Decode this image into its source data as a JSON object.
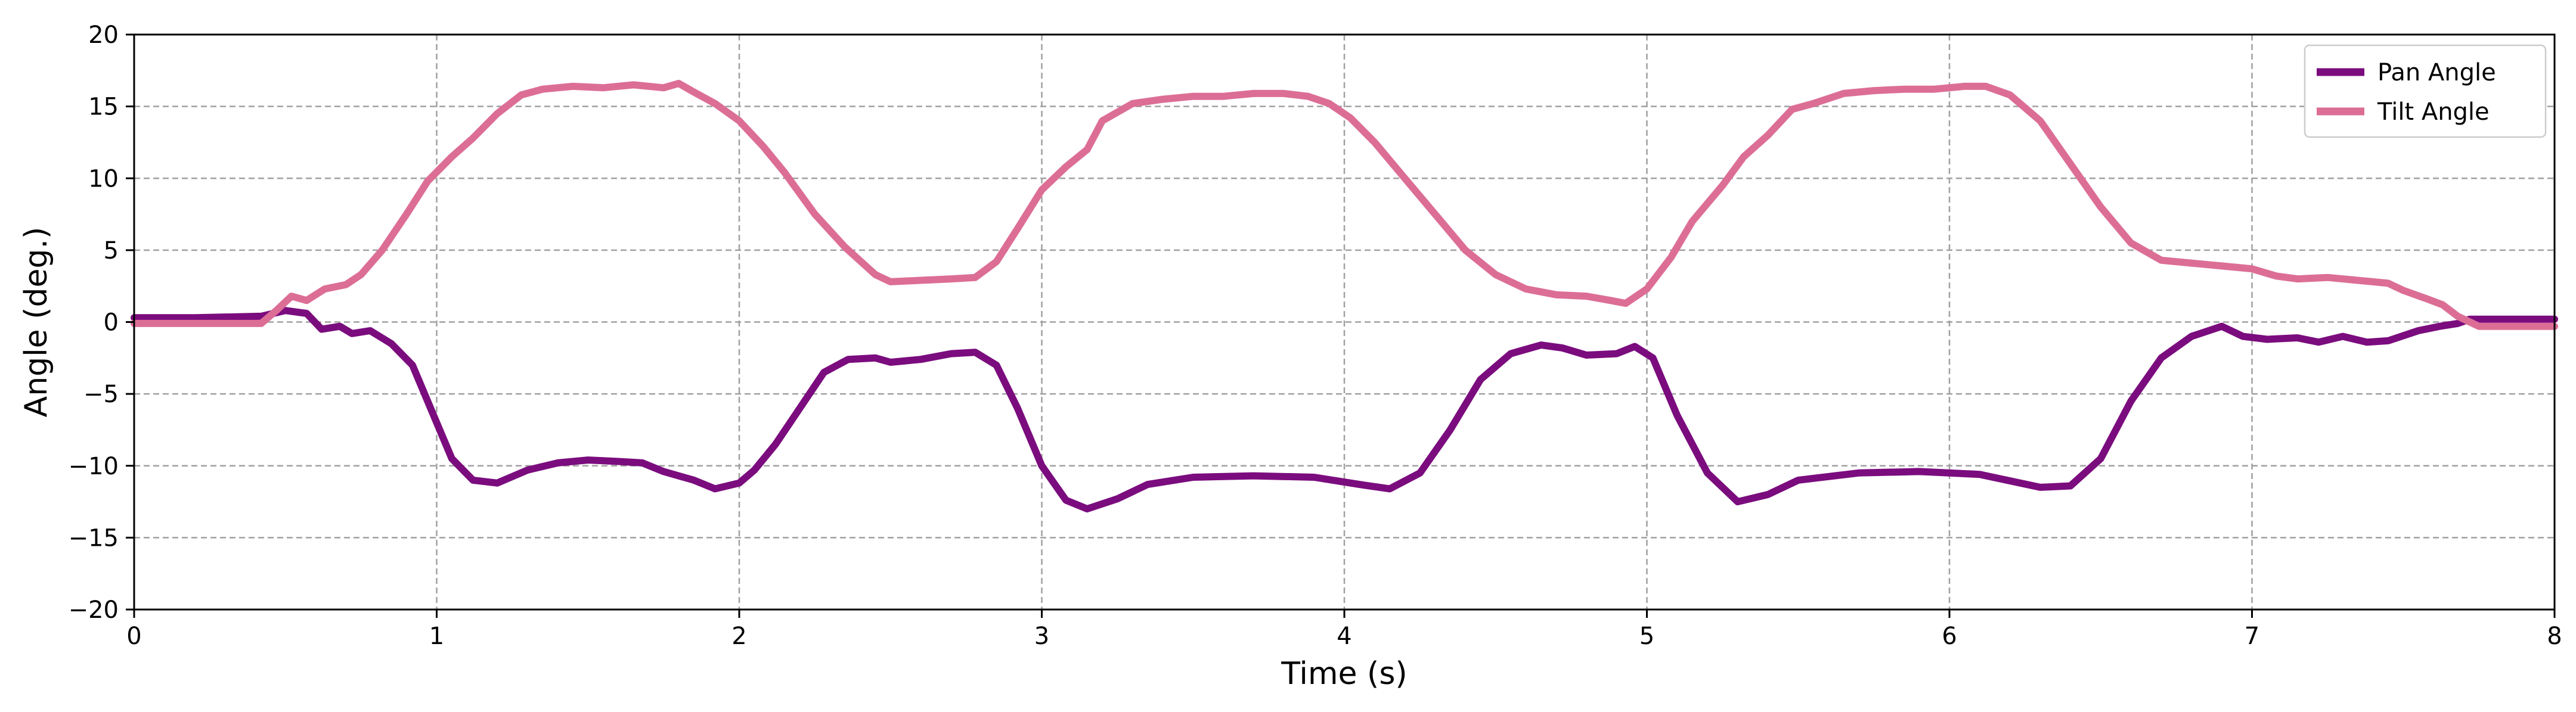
{
  "chart_data": {
    "type": "line",
    "title": "",
    "xlabel": "Time (s)",
    "ylabel": "Angle (deg.)",
    "xlim": [
      0,
      8
    ],
    "ylim": [
      -20,
      20
    ],
    "xticks": [
      0,
      1,
      2,
      3,
      4,
      5,
      6,
      7,
      8
    ],
    "xtick_labels": [
      "0",
      "1",
      "2",
      "3",
      "4",
      "5",
      "6",
      "7",
      "8"
    ],
    "yticks": [
      -20,
      -15,
      -10,
      -5,
      0,
      5,
      10,
      15,
      20
    ],
    "ytick_labels": [
      "−20",
      "−15",
      "−10",
      "−5",
      "0",
      "5",
      "10",
      "15",
      "20"
    ],
    "grid": true,
    "legend_position": "top-right",
    "series": [
      {
        "name": "Pan Angle",
        "color": "#7b0c7e",
        "points": [
          [
            0,
            0.3
          ],
          [
            0.2,
            0.3
          ],
          [
            0.42,
            0.4
          ],
          [
            0.5,
            0.8
          ],
          [
            0.57,
            0.6
          ],
          [
            0.62,
            -0.5
          ],
          [
            0.68,
            -0.3
          ],
          [
            0.72,
            -0.8
          ],
          [
            0.78,
            -0.6
          ],
          [
            0.85,
            -1.5
          ],
          [
            0.92,
            -3
          ],
          [
            1.0,
            -7
          ],
          [
            1.05,
            -9.5
          ],
          [
            1.12,
            -11
          ],
          [
            1.2,
            -11.2
          ],
          [
            1.3,
            -10.3
          ],
          [
            1.4,
            -9.8
          ],
          [
            1.5,
            -9.6
          ],
          [
            1.6,
            -9.7
          ],
          [
            1.68,
            -9.8
          ],
          [
            1.75,
            -10.4
          ],
          [
            1.85,
            -11
          ],
          [
            1.92,
            -11.6
          ],
          [
            2.0,
            -11.2
          ],
          [
            2.05,
            -10.3
          ],
          [
            2.12,
            -8.5
          ],
          [
            2.2,
            -6
          ],
          [
            2.28,
            -3.5
          ],
          [
            2.36,
            -2.6
          ],
          [
            2.45,
            -2.5
          ],
          [
            2.5,
            -2.8
          ],
          [
            2.6,
            -2.6
          ],
          [
            2.7,
            -2.2
          ],
          [
            2.78,
            -2.1
          ],
          [
            2.85,
            -3
          ],
          [
            2.92,
            -6
          ],
          [
            3.0,
            -10
          ],
          [
            3.08,
            -12.4
          ],
          [
            3.15,
            -13
          ],
          [
            3.25,
            -12.3
          ],
          [
            3.35,
            -11.3
          ],
          [
            3.5,
            -10.8
          ],
          [
            3.7,
            -10.7
          ],
          [
            3.9,
            -10.8
          ],
          [
            4.05,
            -11.3
          ],
          [
            4.15,
            -11.6
          ],
          [
            4.25,
            -10.5
          ],
          [
            4.35,
            -7.5
          ],
          [
            4.45,
            -4
          ],
          [
            4.55,
            -2.2
          ],
          [
            4.65,
            -1.6
          ],
          [
            4.72,
            -1.8
          ],
          [
            4.8,
            -2.3
          ],
          [
            4.9,
            -2.2
          ],
          [
            4.96,
            -1.7
          ],
          [
            5.02,
            -2.5
          ],
          [
            5.1,
            -6.5
          ],
          [
            5.2,
            -10.5
          ],
          [
            5.3,
            -12.5
          ],
          [
            5.4,
            -12
          ],
          [
            5.5,
            -11
          ],
          [
            5.7,
            -10.5
          ],
          [
            5.9,
            -10.4
          ],
          [
            6.1,
            -10.6
          ],
          [
            6.3,
            -11.5
          ],
          [
            6.4,
            -11.4
          ],
          [
            6.5,
            -9.5
          ],
          [
            6.6,
            -5.5
          ],
          [
            6.7,
            -2.5
          ],
          [
            6.8,
            -1
          ],
          [
            6.9,
            -0.3
          ],
          [
            6.97,
            -1
          ],
          [
            7.05,
            -1.2
          ],
          [
            7.15,
            -1.1
          ],
          [
            7.22,
            -1.4
          ],
          [
            7.3,
            -1
          ],
          [
            7.38,
            -1.4
          ],
          [
            7.45,
            -1.3
          ],
          [
            7.55,
            -0.6
          ],
          [
            7.62,
            -0.3
          ],
          [
            7.68,
            -0.1
          ],
          [
            7.72,
            0.2
          ],
          [
            8.0,
            0.2
          ]
        ]
      },
      {
        "name": "Tilt Angle",
        "color": "#dc6e96",
        "points": [
          [
            0,
            -0.1
          ],
          [
            0.2,
            -0.1
          ],
          [
            0.42,
            -0.1
          ],
          [
            0.47,
            0.8
          ],
          [
            0.52,
            1.8
          ],
          [
            0.57,
            1.5
          ],
          [
            0.63,
            2.3
          ],
          [
            0.7,
            2.6
          ],
          [
            0.75,
            3.3
          ],
          [
            0.82,
            5
          ],
          [
            0.9,
            7.5
          ],
          [
            0.97,
            9.8
          ],
          [
            1.05,
            11.5
          ],
          [
            1.12,
            12.8
          ],
          [
            1.2,
            14.5
          ],
          [
            1.28,
            15.8
          ],
          [
            1.35,
            16.2
          ],
          [
            1.45,
            16.4
          ],
          [
            1.55,
            16.3
          ],
          [
            1.65,
            16.5
          ],
          [
            1.75,
            16.3
          ],
          [
            1.8,
            16.6
          ],
          [
            1.85,
            16
          ],
          [
            1.92,
            15.2
          ],
          [
            2.0,
            14
          ],
          [
            2.08,
            12.2
          ],
          [
            2.15,
            10.4
          ],
          [
            2.25,
            7.5
          ],
          [
            2.35,
            5.2
          ],
          [
            2.45,
            3.3
          ],
          [
            2.5,
            2.8
          ],
          [
            2.6,
            2.9
          ],
          [
            2.7,
            3
          ],
          [
            2.78,
            3.1
          ],
          [
            2.85,
            4.2
          ],
          [
            2.92,
            6.5
          ],
          [
            3.0,
            9.2
          ],
          [
            3.08,
            10.8
          ],
          [
            3.15,
            12
          ],
          [
            3.2,
            14
          ],
          [
            3.3,
            15.2
          ],
          [
            3.4,
            15.5
          ],
          [
            3.5,
            15.7
          ],
          [
            3.6,
            15.7
          ],
          [
            3.7,
            15.9
          ],
          [
            3.8,
            15.9
          ],
          [
            3.88,
            15.7
          ],
          [
            3.95,
            15.2
          ],
          [
            4.02,
            14.2
          ],
          [
            4.1,
            12.5
          ],
          [
            4.2,
            10
          ],
          [
            4.3,
            7.5
          ],
          [
            4.4,
            5
          ],
          [
            4.5,
            3.3
          ],
          [
            4.6,
            2.3
          ],
          [
            4.7,
            1.9
          ],
          [
            4.8,
            1.8
          ],
          [
            4.88,
            1.5
          ],
          [
            4.93,
            1.3
          ],
          [
            5.0,
            2.3
          ],
          [
            5.08,
            4.5
          ],
          [
            5.15,
            7
          ],
          [
            5.25,
            9.5
          ],
          [
            5.32,
            11.5
          ],
          [
            5.4,
            13
          ],
          [
            5.48,
            14.8
          ],
          [
            5.55,
            15.2
          ],
          [
            5.65,
            15.9
          ],
          [
            5.75,
            16.1
          ],
          [
            5.85,
            16.2
          ],
          [
            5.95,
            16.2
          ],
          [
            6.05,
            16.4
          ],
          [
            6.12,
            16.4
          ],
          [
            6.2,
            15.8
          ],
          [
            6.3,
            14
          ],
          [
            6.4,
            11
          ],
          [
            6.5,
            8
          ],
          [
            6.6,
            5.5
          ],
          [
            6.7,
            4.3
          ],
          [
            6.8,
            4.1
          ],
          [
            6.9,
            3.9
          ],
          [
            7.0,
            3.7
          ],
          [
            7.08,
            3.2
          ],
          [
            7.15,
            3
          ],
          [
            7.25,
            3.1
          ],
          [
            7.35,
            2.9
          ],
          [
            7.45,
            2.7
          ],
          [
            7.5,
            2.2
          ],
          [
            7.58,
            1.6
          ],
          [
            7.63,
            1.2
          ],
          [
            7.68,
            0.4
          ],
          [
            7.75,
            -0.3
          ],
          [
            8.0,
            -0.3
          ]
        ]
      }
    ]
  }
}
